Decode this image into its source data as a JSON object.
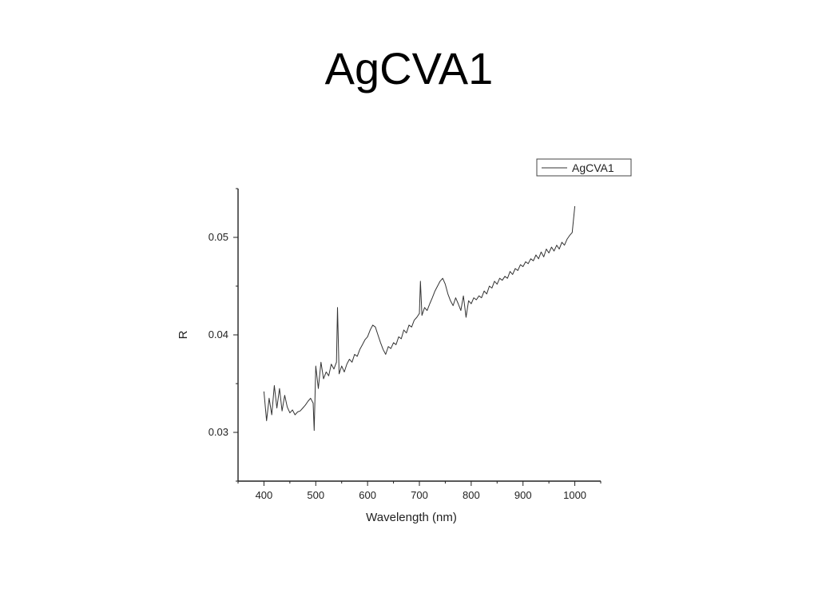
{
  "slide": {
    "title": "AgCVA1"
  },
  "chart_data": {
    "type": "line",
    "title": "",
    "xlabel": "Wavelength (nm)",
    "ylabel": "R",
    "xlim": [
      350,
      1050
    ],
    "ylim": [
      0.025,
      0.055
    ],
    "x_ticks": [
      400,
      500,
      600,
      700,
      800,
      900,
      1000
    ],
    "y_ticks": [
      0.03,
      0.04,
      0.05
    ],
    "y_tick_labels": [
      "0.03",
      "0.04",
      "0.05"
    ],
    "grid": false,
    "legend": {
      "position": "top-right",
      "entries": [
        "AgCVA1"
      ]
    },
    "series": [
      {
        "name": "AgCVA1",
        "color": "#333333",
        "x": [
          400,
          405,
          410,
          415,
          420,
          425,
          430,
          435,
          440,
          445,
          450,
          455,
          460,
          465,
          470,
          475,
          480,
          485,
          490,
          495,
          497,
          500,
          505,
          510,
          515,
          520,
          525,
          530,
          535,
          540,
          542,
          545,
          550,
          555,
          560,
          565,
          570,
          575,
          580,
          585,
          590,
          595,
          600,
          605,
          610,
          615,
          620,
          625,
          630,
          635,
          640,
          645,
          650,
          655,
          660,
          665,
          670,
          675,
          680,
          685,
          690,
          695,
          700,
          702,
          705,
          710,
          715,
          720,
          725,
          730,
          735,
          740,
          745,
          750,
          755,
          760,
          765,
          770,
          775,
          780,
          785,
          790,
          795,
          800,
          805,
          810,
          815,
          820,
          825,
          830,
          835,
          840,
          845,
          850,
          855,
          860,
          865,
          870,
          875,
          880,
          885,
          890,
          895,
          900,
          905,
          910,
          915,
          920,
          925,
          930,
          935,
          940,
          945,
          950,
          955,
          960,
          965,
          970,
          975,
          980,
          985,
          990,
          995,
          1000
        ],
        "y": [
          0.0342,
          0.0312,
          0.0335,
          0.0318,
          0.0348,
          0.0325,
          0.0345,
          0.0322,
          0.0338,
          0.0326,
          0.032,
          0.0323,
          0.0318,
          0.0321,
          0.0322,
          0.0325,
          0.0328,
          0.0332,
          0.0335,
          0.033,
          0.0302,
          0.0368,
          0.0345,
          0.0372,
          0.0355,
          0.0362,
          0.0358,
          0.037,
          0.0365,
          0.0372,
          0.0428,
          0.036,
          0.0368,
          0.0362,
          0.037,
          0.0375,
          0.0372,
          0.038,
          0.0378,
          0.0385,
          0.039,
          0.0395,
          0.0398,
          0.0405,
          0.041,
          0.0408,
          0.04,
          0.0392,
          0.0385,
          0.038,
          0.0388,
          0.0386,
          0.0392,
          0.039,
          0.0398,
          0.0396,
          0.0405,
          0.0402,
          0.041,
          0.0408,
          0.0415,
          0.0418,
          0.0422,
          0.0455,
          0.042,
          0.0428,
          0.0425,
          0.0432,
          0.0438,
          0.0445,
          0.045,
          0.0455,
          0.0458,
          0.0452,
          0.0442,
          0.0435,
          0.043,
          0.0438,
          0.0432,
          0.0425,
          0.044,
          0.0418,
          0.0435,
          0.0432,
          0.0438,
          0.0436,
          0.044,
          0.0438,
          0.0445,
          0.0442,
          0.045,
          0.0448,
          0.0455,
          0.0452,
          0.0458,
          0.0456,
          0.046,
          0.0458,
          0.0465,
          0.0462,
          0.0468,
          0.0466,
          0.0472,
          0.047,
          0.0475,
          0.0473,
          0.0478,
          0.0476,
          0.0482,
          0.0478,
          0.0485,
          0.048,
          0.0488,
          0.0484,
          0.049,
          0.0486,
          0.0492,
          0.0488,
          0.0495,
          0.0492,
          0.0498,
          0.0502,
          0.0505,
          0.0532
        ]
      }
    ]
  }
}
